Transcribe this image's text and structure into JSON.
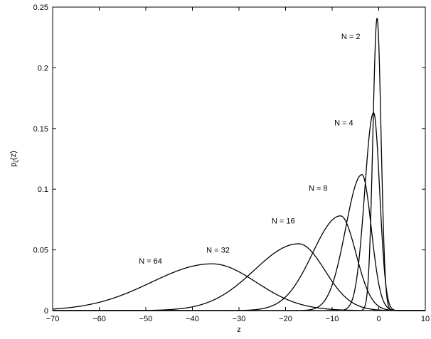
{
  "chart_data": {
    "type": "line",
    "title": "",
    "xlabel": "z",
    "ylabel": "p",
    "ylabel_sub": "ζ",
    "ylabel_suffix": "(z)",
    "xlim": [
      -70,
      10
    ],
    "ylim": [
      0,
      0.25
    ],
    "grid": false,
    "xticks": [
      -70,
      -60,
      -50,
      -40,
      -30,
      -20,
      -10,
      0,
      10
    ],
    "xtick_labels": [
      "−70",
      "−60",
      "−50",
      "−40",
      "−30",
      "−20",
      "−10",
      "0",
      "10"
    ],
    "yticks": [
      0,
      0.05,
      0.1,
      0.15,
      0.2,
      0.25
    ],
    "ytick_labels": [
      "0",
      "0.05",
      "0.1",
      "0.15",
      "0.2",
      "0.25"
    ],
    "line_color": "#000000",
    "series": [
      {
        "name": "N = 2",
        "peak_x": -0.35,
        "peak_y": 0.241,
        "sigma_left": 0.9,
        "sigma_right": 0.85,
        "label_at": [
          -6.0,
          0.226
        ]
      },
      {
        "name": "N = 4",
        "peak_x": -1.1,
        "peak_y": 0.163,
        "sigma_left": 1.9,
        "sigma_right": 1.3,
        "label_at": [
          -7.5,
          0.155
        ]
      },
      {
        "name": "N = 8",
        "peak_x": -3.6,
        "peak_y": 0.112,
        "sigma_left": 3.5,
        "sigma_right": 2.0,
        "label_at": [
          -13.0,
          0.101
        ]
      },
      {
        "name": "N = 16",
        "peak_x": -8.2,
        "peak_y": 0.078,
        "sigma_left": 6.0,
        "sigma_right": 3.3,
        "label_at": [
          -20.5,
          0.074
        ]
      },
      {
        "name": "N = 32",
        "peak_x": -17.2,
        "peak_y": 0.055,
        "sigma_left": 9.5,
        "sigma_right": 5.6,
        "label_at": [
          -34.5,
          0.05
        ]
      },
      {
        "name": "N = 64",
        "peak_x": -35.8,
        "peak_y": 0.0385,
        "sigma_left": 13.0,
        "sigma_right": 9.5,
        "label_at": [
          -49.0,
          0.041
        ]
      }
    ]
  }
}
